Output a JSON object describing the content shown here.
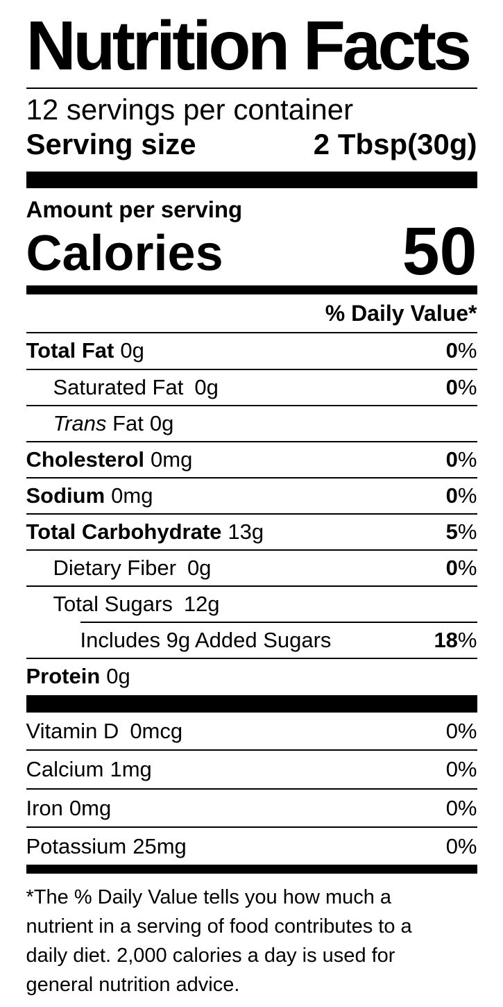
{
  "title": "Nutrition Facts",
  "servings_per_container": "12 servings per container",
  "serving_size": {
    "label": "Serving size",
    "value": "2 Tbsp(30g)"
  },
  "amount_per_serving": "Amount per serving",
  "calories": {
    "label": "Calories",
    "value": "50"
  },
  "daily_value_header": "% Daily Value*",
  "nutrient_rows": [
    {
      "name": "Total Fat",
      "amount": "0g",
      "dv": "0",
      "pct": "%"
    },
    {
      "name": "Saturated Fat",
      "amount": "0g",
      "dv": "0",
      "pct": "%"
    },
    {
      "name_italic": "Trans",
      "name_rest": " Fat",
      "amount": "0g"
    },
    {
      "name": "Cholesterol",
      "amount": "0mg",
      "dv": "0",
      "pct": "%"
    },
    {
      "name": "Sodium",
      "amount": "0mg",
      "dv": "0",
      "pct": "%"
    },
    {
      "name": "Total Carbohydrate",
      "amount": "13g",
      "dv": "5",
      "pct": "%"
    },
    {
      "name": "Dietary Fiber",
      "amount": "0g",
      "dv": "0",
      "pct": "%"
    },
    {
      "name": "Total Sugars",
      "amount": "12g"
    },
    {
      "name": "Includes 9g Added Sugars",
      "dv": "18",
      "pct": "%"
    },
    {
      "name": "Protein",
      "amount": "0g"
    }
  ],
  "vitamin_rows": [
    {
      "name": "Vitamin D",
      "amount": "0mcg",
      "dv": "0%"
    },
    {
      "name": "Calcium",
      "amount": "1mg",
      "dv": "0%"
    },
    {
      "name": "Iron",
      "amount": "0mg",
      "dv": "0%"
    },
    {
      "name": "Potassium",
      "amount": "25mg",
      "dv": "0%"
    }
  ],
  "footnote_lines": [
    "*The % Daily Value tells you how much a",
    "nutrient in a serving of food contributes to a",
    "daily diet. 2,000 calories a day is used for",
    "general nutrition advice."
  ],
  "colors": {
    "text": "#000000",
    "background": "#ffffff"
  }
}
